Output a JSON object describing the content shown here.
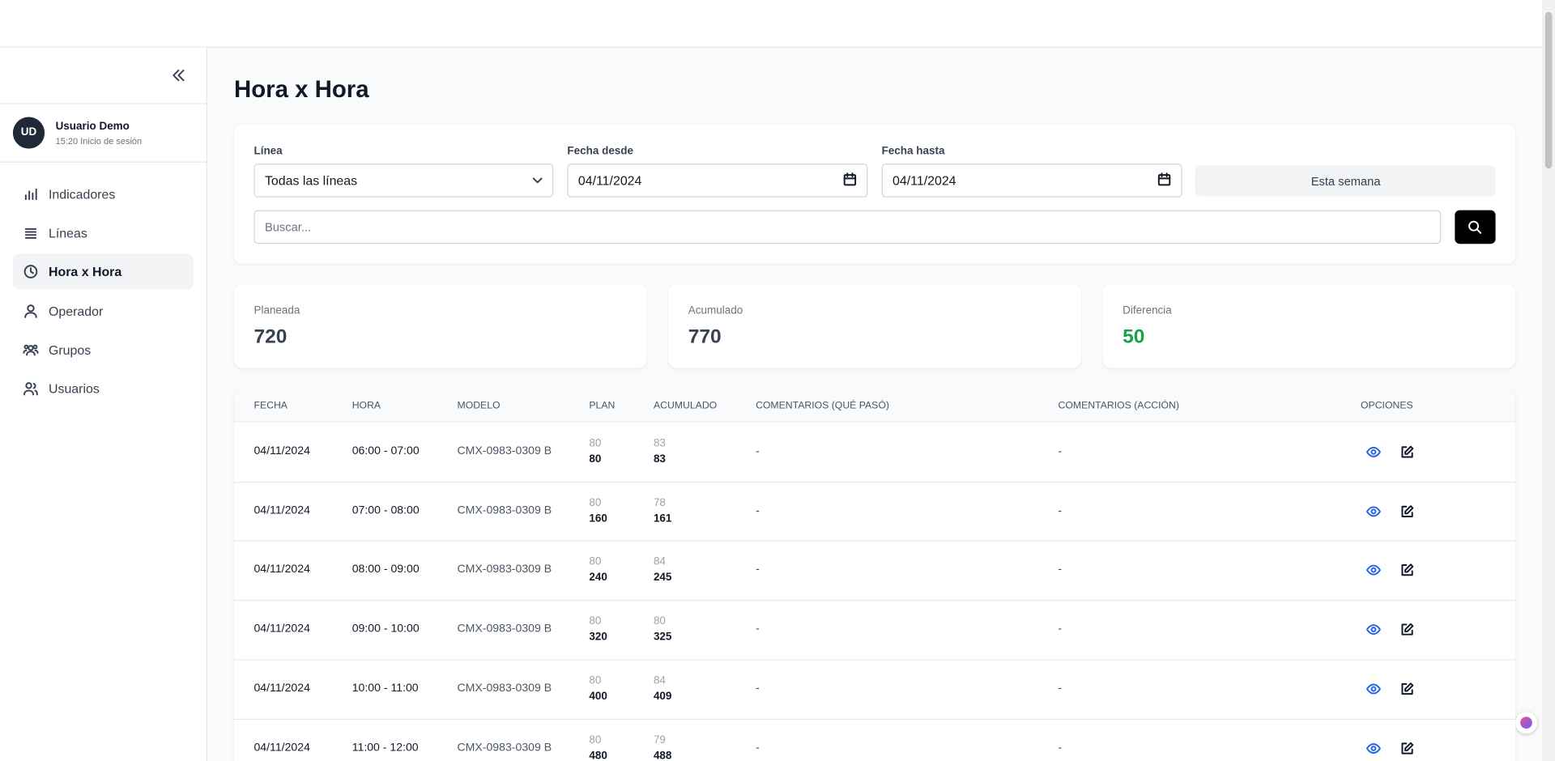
{
  "sidebar": {
    "user": {
      "initials": "UD",
      "name": "Usuario Demo",
      "session": "15:20 Inicio de sesión"
    },
    "nav": [
      "Indicadores",
      "Líneas",
      "Hora x Hora",
      "Operador",
      "Grupos",
      "Usuarios"
    ],
    "active": 2
  },
  "page": {
    "title": "Hora x Hora"
  },
  "filters": {
    "line_label": "Línea",
    "line_value": "Todas las líneas",
    "from_label": "Fecha desde",
    "from_value": "04/11/2024",
    "to_label": "Fecha hasta",
    "to_value": "04/11/2024",
    "week_button": "Esta semana",
    "search_placeholder": "Buscar..."
  },
  "summary": [
    {
      "label": "Planeada",
      "value": 720
    },
    {
      "label": "Acumulado",
      "value": 770
    },
    {
      "label": "Diferencia",
      "value": 50
    }
  ],
  "table": {
    "columns": [
      "FECHA",
      "HORA",
      "MODELO",
      "PLAN",
      "ACUMULADO",
      "COMENTARIOS (QUÉ PASÓ)",
      "COMENTARIOS (ACCIÓN)",
      "OPCIONES"
    ],
    "rows": [
      {
        "fecha": "04/11/2024",
        "hora": "06:00 - 07:00",
        "modelo": "CMX-0983-0309 B",
        "plan": 80,
        "plan_total": 80,
        "acum": 83,
        "acum_total": 83,
        "que_paso": "-",
        "accion": "-"
      },
      {
        "fecha": "04/11/2024",
        "hora": "07:00 - 08:00",
        "modelo": "CMX-0983-0309 B",
        "plan": 80,
        "plan_total": 160,
        "acum": 78,
        "acum_total": 161,
        "que_paso": "-",
        "accion": "-"
      },
      {
        "fecha": "04/11/2024",
        "hora": "08:00 - 09:00",
        "modelo": "CMX-0983-0309 B",
        "plan": 80,
        "plan_total": 240,
        "acum": 84,
        "acum_total": 245,
        "que_paso": "-",
        "accion": "-"
      },
      {
        "fecha": "04/11/2024",
        "hora": "09:00 - 10:00",
        "modelo": "CMX-0983-0309 B",
        "plan": 80,
        "plan_total": 320,
        "acum": 80,
        "acum_total": 325,
        "que_paso": "-",
        "accion": "-"
      },
      {
        "fecha": "04/11/2024",
        "hora": "10:00 - 11:00",
        "modelo": "CMX-0983-0309 B",
        "plan": 80,
        "plan_total": 400,
        "acum": 84,
        "acum_total": 409,
        "que_paso": "-",
        "accion": "-"
      },
      {
        "fecha": "04/11/2024",
        "hora": "11:00 - 12:00",
        "modelo": "CMX-0983-0309 B",
        "plan": 80,
        "plan_total": 480,
        "acum": 79,
        "acum_total": 488,
        "que_paso": "-",
        "accion": "-"
      }
    ]
  }
}
